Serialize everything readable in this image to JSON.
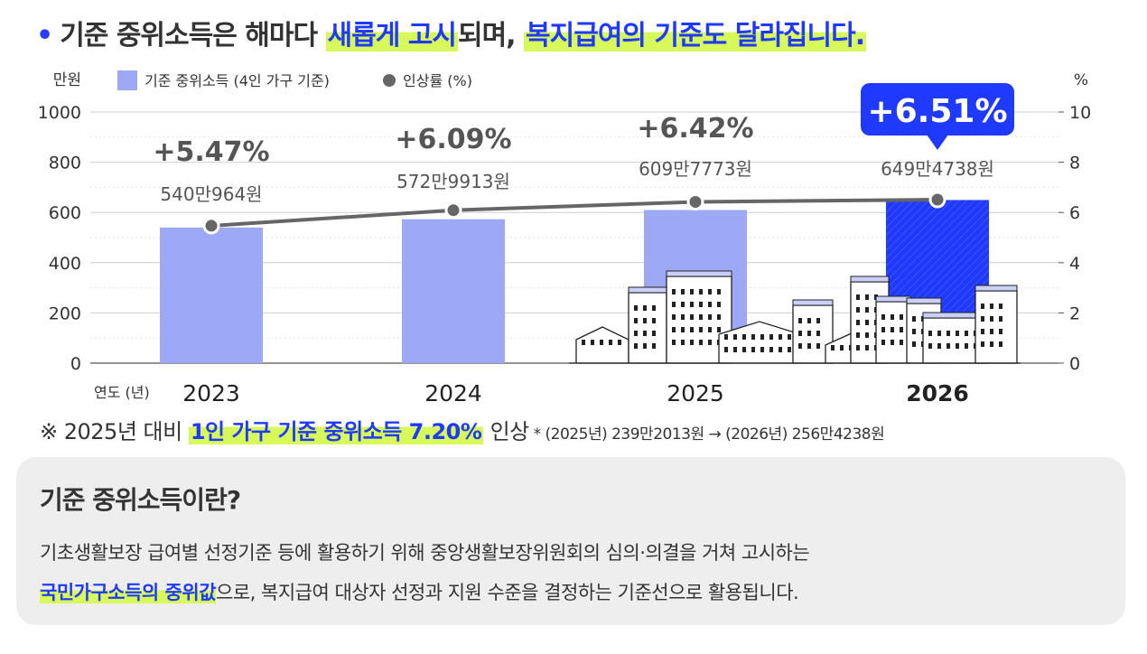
{
  "headline": {
    "part1": "기준 중위소득은 해마다 ",
    "hl1": "새롭게 고시",
    "part2": "되며, ",
    "hl2": "복지급여의 기준도 달라집니다."
  },
  "chart_data": {
    "type": "bar",
    "categories": [
      "2023",
      "2024",
      "2025",
      "2026"
    ],
    "series": [
      {
        "name": "기준 중위소득 (4인 가구 기준)",
        "type": "bar",
        "axis": "left",
        "values": [
          540.0964,
          572.9913,
          609.7773,
          649.4738
        ],
        "labels": [
          "540만964원",
          "572만9913원",
          "609만7773원",
          "649만4738원"
        ]
      },
      {
        "name": "인상률 (%)",
        "type": "line",
        "axis": "right",
        "values": [
          5.47,
          6.09,
          6.42,
          6.51
        ],
        "labels": [
          "+5.47%",
          "+6.09%",
          "+6.42%",
          "+6.51%"
        ]
      }
    ],
    "y_left": {
      "label": "만원",
      "ticks": [
        "0",
        "200",
        "400",
        "600",
        "800",
        "1000"
      ],
      "range": [
        0,
        1000
      ]
    },
    "y_right": {
      "label": "%",
      "ticks": [
        "0",
        "2",
        "4",
        "6",
        "8",
        "10"
      ],
      "range": [
        0,
        10
      ]
    },
    "xlabel": "연도 (년)",
    "highlight_index": 3,
    "grid": true,
    "legend": "top-left",
    "colors": {
      "bar": "#9da9f5",
      "bar_highlight": "#1f39ff",
      "line": "#666666",
      "callout": "#1f39ff"
    }
  },
  "note": {
    "prefix": "※ 2025년 대비 ",
    "highlight": "1인 가구 기준 중위소득 7.20%",
    "suffix": " 인상",
    "detail": " * (2025년) 239만2013원 → (2026년) 256만4238원"
  },
  "info": {
    "title": "기준 중위소득이란?",
    "line1": "기초생활보장 급여별 선정기준 등에 활용하기 위해 중앙생활보장위원회의 심의·의결을 거쳐 고시하는",
    "highlight": "국민가구소득의 중위값",
    "line2": "으로, 복지급여 대상자 선정과 지원 수준을 결정하는 기준선으로 활용됩니다."
  }
}
